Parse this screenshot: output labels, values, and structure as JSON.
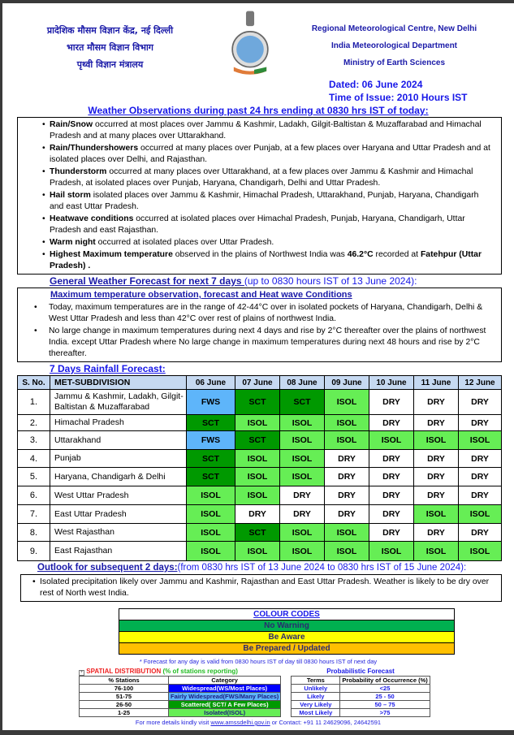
{
  "header": {
    "hindi_lines": [
      "प्रादेशिक मौसम विज्ञान केंद्र, नई दिल्ली",
      "भारत मौसम विज्ञान विभाग",
      "पृथ्वी विज्ञान मंत्रालय"
    ],
    "english_lines": [
      "Regional Meteorological Centre, New Delhi",
      "India Meteorological Department",
      "Ministry of Earth Sciences"
    ],
    "dated": "Dated: 06 June 2024",
    "time_of_issue": "Time of Issue: 2010 Hours IST"
  },
  "observations": {
    "heading": "Weather Observations during past 24 hrs ending at 0830 hrs IST of today:",
    "items": [
      {
        "bold": "Rain/Snow",
        "text": " occurred at most places over Jammu & Kashmir, Ladakh, Gilgit-Baltistan & Muzaffarabad and Himachal Pradesh and at many places over Uttarakhand."
      },
      {
        "bold": "Rain/Thundershowers",
        "text": " occurred at many places over Punjab, at a few places over Haryana and Uttar Pradesh and at isolated places over Delhi, and Rajasthan."
      },
      {
        "bold": "Thunderstorm",
        "text": " occurred at many places over Uttarakhand, at a few places over Jammu & Kashmir and Himachal Pradesh, at isolated places over Punjab, Haryana, Chandigarh, Delhi and Uttar Pradesh."
      },
      {
        "bold": "Hail storm",
        "text": " isolated places over Jammu & Kashmir, Himachal Pradesh, Uttarakhand, Punjab, Haryana, Chandigarh and east Uttar Pradesh."
      },
      {
        "bold": "Heatwave conditions",
        "text": " occurred at isolated places over Himachal Pradesh, Punjab, Haryana, Chandigarh, Uttar Pradesh and east Rajasthan."
      },
      {
        "bold": "Warm night",
        "text": " occurred at isolated places over Uttar Pradesh."
      }
    ],
    "highest": {
      "bold1": "Highest Maximum temperature",
      "text1": " observed in the plains of Northwest India was ",
      "bold2": "46.2°C",
      "text2": " recorded at ",
      "bold3": "Fatehpur (Uttar Pradesh) ."
    }
  },
  "forecast": {
    "heading_u": "General Weather Forecast for next 7 days ",
    "heading_rest": "(up to 0830 hours IST of 13 June 2024):",
    "temp_heading": "Maximum temperature observation, forecast and Heat wave Conditions",
    "temp_items": [
      "Today, maximum temperatures are in the range of 42-44°C over in isolated pockets of Haryana, Chandigarh, Delhi & West Uttar Pradesh and less than 42°C over rest of plains of northwest India.",
      "No large change in maximum temperatures during next 4 days and rise by 2°C thereafter over the plains of northwest India. except Uttar Pradesh where No large change in maximum temperatures during next 48 hours and rise  by 2°C  thereafter."
    ]
  },
  "rainfall": {
    "heading": "7 Days Rainfall Forecast:",
    "columns": [
      "S. No.",
      "MET-SUBDIVISION",
      "06 June",
      "07 June",
      "08 June",
      "09 June",
      "10 June",
      "11 June",
      "12 June"
    ],
    "rows": [
      {
        "sno": "1.",
        "name": "Jammu & Kashmir, Ladakh, Gilgit-Baltistan & Muzaffarabad",
        "cells": [
          "FWS",
          "SCT",
          "SCT",
          "ISOL",
          "DRY",
          "DRY",
          "DRY"
        ]
      },
      {
        "sno": "2.",
        "name": "Himachal Pradesh",
        "cells": [
          "SCT",
          "ISOL",
          "ISOL",
          "ISOL",
          "DRY",
          "DRY",
          "DRY"
        ]
      },
      {
        "sno": "3.",
        "name": "Uttarakhand",
        "cells": [
          "FWS",
          "SCT",
          "ISOL",
          "ISOL",
          "ISOL",
          "ISOL",
          "ISOL"
        ]
      },
      {
        "sno": "4.",
        "name": "Punjab",
        "cells": [
          "SCT",
          "ISOL",
          "ISOL",
          "DRY",
          "DRY",
          "DRY",
          "DRY"
        ]
      },
      {
        "sno": "5.",
        "name": "Haryana, Chandigarh & Delhi",
        "cells": [
          "SCT",
          "ISOL",
          "ISOL",
          "DRY",
          "DRY",
          "DRY",
          "DRY"
        ]
      },
      {
        "sno": "6.",
        "name": "West Uttar Pradesh",
        "cells": [
          "ISOL",
          "ISOL",
          "DRY",
          "DRY",
          "DRY",
          "DRY",
          "DRY"
        ]
      },
      {
        "sno": "7.",
        "name": "East Uttar Pradesh",
        "cells": [
          "ISOL",
          "DRY",
          "DRY",
          "DRY",
          "DRY",
          "ISOL",
          "ISOL"
        ]
      },
      {
        "sno": "8.",
        "name": "West Rajasthan",
        "cells": [
          "ISOL",
          "SCT",
          "ISOL",
          "ISOL",
          "DRY",
          "DRY",
          "DRY"
        ]
      },
      {
        "sno": "9.",
        "name": "East Rajasthan",
        "cells": [
          "ISOL",
          "ISOL",
          "ISOL",
          "ISOL",
          "ISOL",
          "ISOL",
          "ISOL"
        ]
      }
    ],
    "category_colors": {
      "FWS": "#5eb5fa",
      "SCT": "#009900",
      "ISOL": "#66ee55",
      "DRY": "#ffffff"
    }
  },
  "outlook": {
    "heading_u": "Outlook for subsequent 2 days:",
    "heading_rest": "(from 0830 hrs IST of 13 June 2024 to 0830 hrs IST of 15 June 2024):",
    "items": [
      "Isolated precipitation likely over Jammu and Kashmir, Rajasthan and East Uttar Pradesh. Weather is likely to be dry over rest of North west India."
    ]
  },
  "colour_codes": {
    "title": "COLOUR CODES",
    "items": [
      {
        "label": "No Warning",
        "color": "#00b050"
      },
      {
        "label": "Be Aware",
        "color": "#ffff00"
      },
      {
        "label": "Be Prepared / Updated",
        "color": "#ffc000"
      }
    ]
  },
  "footnote": "* Forecast for any day is valid from 0830 hours IST of day till 0830 hours IST of next day",
  "spatial": {
    "title": "SPATIAL DISTRIBUTION",
    "subtitle": "(% of stations reporting)",
    "headers": [
      "% Stations",
      "Category"
    ],
    "rows": [
      {
        "pct": "76-100",
        "cat": "Widespread(WS/Most Places)",
        "color": "#0000ff",
        "fg": "#ffffff"
      },
      {
        "pct": "51-75",
        "cat": "Fairly Widespread(FWS/Many Places)",
        "color": "#5eb5fa",
        "fg": "#1a1a80"
      },
      {
        "pct": "26-50",
        "cat": "Scattered( SCT/ A Few Places)",
        "color": "#009900",
        "fg": "#ffffff"
      },
      {
        "pct": "1-25",
        "cat": "Isolated(ISOL)",
        "color": "#66ee55",
        "fg": "#1a1a80"
      }
    ]
  },
  "probabilistic": {
    "title": "Probabilistic Forecast",
    "headers": [
      "Terms",
      "Probability of Occurrence (%)"
    ],
    "rows": [
      {
        "term": "Unlikely",
        "prob": "<25"
      },
      {
        "term": "Likely",
        "prob": "25 - 50"
      },
      {
        "term": "Very Likely",
        "prob": "50 – 75"
      },
      {
        "term": "Most Likely",
        "prob": ">75"
      }
    ]
  },
  "footer": {
    "prefix": "For more details kindly visit ",
    "link": "www.amssdelhi.gov.in",
    "suffix": " or Contact: +91 11 24629096, 24642591"
  }
}
